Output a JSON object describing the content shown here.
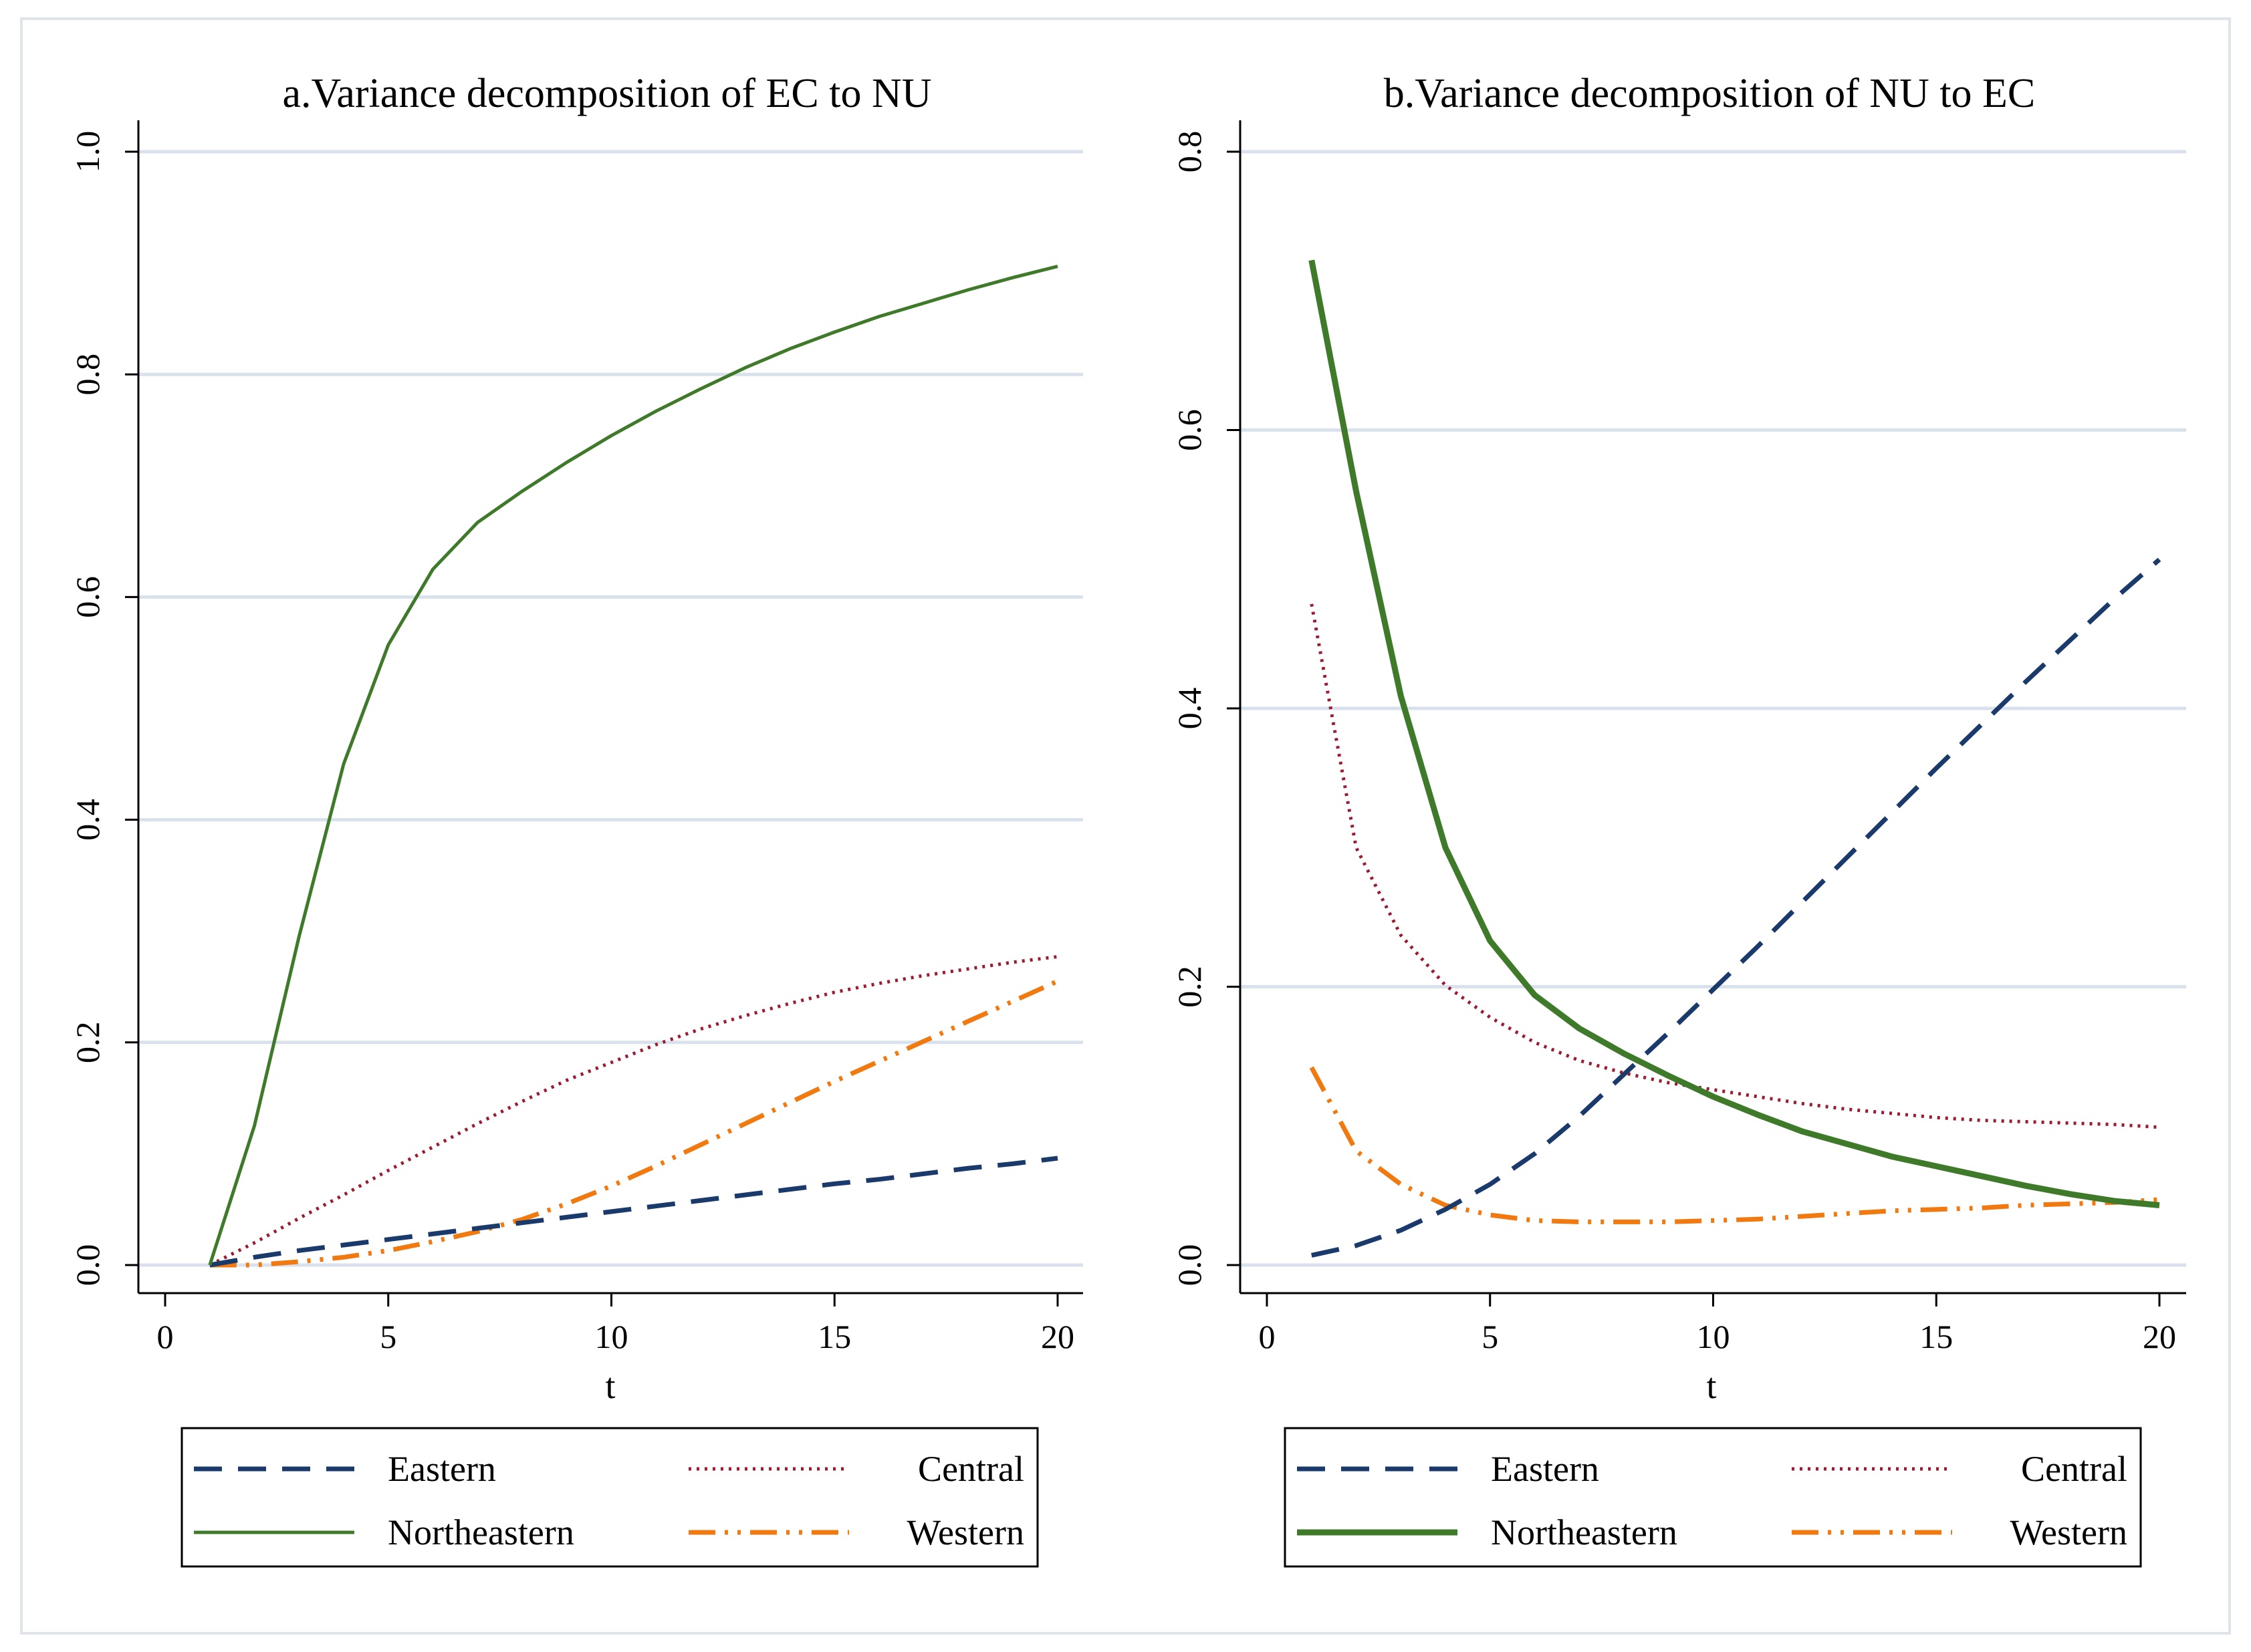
{
  "colors": {
    "Eastern": "#1a3a6b",
    "Northeastern": "#3f7a2a",
    "Central": "#9b1b30",
    "Western": "#f07a10",
    "grid": "#d9e2ec",
    "frame": "#dfe4ea"
  },
  "chart_data": [
    {
      "type": "line",
      "title": "a.Variance decomposition of EC to NU",
      "xlabel": "t",
      "ylabel": "",
      "xlim": [
        0,
        20
      ],
      "ylim": [
        0,
        1.0
      ],
      "xticks": [
        "0",
        "5",
        "10",
        "15",
        "20"
      ],
      "xtick_values": [
        0,
        5,
        10,
        15,
        20
      ],
      "yticks": [
        "0.0",
        "0.2",
        "0.4",
        "0.6",
        "0.8",
        "1.0"
      ],
      "ytick_values": [
        0,
        0.2,
        0.4,
        0.6,
        0.8,
        1.0
      ],
      "grid": true,
      "legend": [
        "Eastern",
        "Central",
        "Northeastern",
        "Western"
      ],
      "legend_position": "bottom",
      "x": [
        1,
        2,
        3,
        4,
        5,
        6,
        7,
        8,
        9,
        10,
        11,
        12,
        13,
        14,
        15,
        16,
        17,
        18,
        19,
        20
      ],
      "series": [
        {
          "name": "Eastern",
          "style": "dash",
          "values": [
            0.0,
            0.007,
            0.013,
            0.018,
            0.023,
            0.028,
            0.033,
            0.038,
            0.043,
            0.048,
            0.053,
            0.058,
            0.063,
            0.068,
            0.073,
            0.077,
            0.082,
            0.087,
            0.091,
            0.096
          ]
        },
        {
          "name": "Central",
          "style": "dot",
          "values": [
            0.0,
            0.02,
            0.042,
            0.063,
            0.085,
            0.106,
            0.127,
            0.147,
            0.166,
            0.182,
            0.198,
            0.212,
            0.224,
            0.235,
            0.245,
            0.253,
            0.26,
            0.266,
            0.272,
            0.277
          ]
        },
        {
          "name": "Northeastern",
          "style": "solid",
          "values": [
            0.0,
            0.125,
            0.295,
            0.45,
            0.557,
            0.625,
            0.667,
            0.695,
            0.721,
            0.745,
            0.767,
            0.787,
            0.806,
            0.823,
            0.838,
            0.852,
            0.864,
            0.876,
            0.887,
            0.897
          ]
        },
        {
          "name": "Western",
          "style": "dashdotdot",
          "values": [
            0.0,
            0.0,
            0.003,
            0.007,
            0.013,
            0.021,
            0.03,
            0.041,
            0.055,
            0.071,
            0.089,
            0.108,
            0.127,
            0.146,
            0.165,
            0.183,
            0.201,
            0.219,
            0.237,
            0.255
          ]
        }
      ]
    },
    {
      "type": "line",
      "title": "b.Variance decomposition of NU to EC",
      "xlabel": "t",
      "ylabel": "",
      "xlim": [
        0,
        20
      ],
      "ylim": [
        0,
        0.8
      ],
      "xticks": [
        "0",
        "5",
        "10",
        "15",
        "20"
      ],
      "xtick_values": [
        0,
        5,
        10,
        15,
        20
      ],
      "yticks": [
        "0.0",
        "0.2",
        "0.4",
        "0.6",
        "0.8"
      ],
      "ytick_values": [
        0,
        0.2,
        0.4,
        0.6,
        0.8
      ],
      "grid": true,
      "legend": [
        "Eastern",
        "Central",
        "Northeastern",
        "Western"
      ],
      "legend_position": "bottom",
      "x": [
        1,
        2,
        3,
        4,
        5,
        6,
        7,
        8,
        9,
        10,
        11,
        12,
        13,
        14,
        15,
        16,
        17,
        18,
        19,
        20
      ],
      "series": [
        {
          "name": "Eastern",
          "style": "dash",
          "values": [
            0.007,
            0.014,
            0.025,
            0.04,
            0.058,
            0.08,
            0.107,
            0.137,
            0.167,
            0.198,
            0.229,
            0.261,
            0.293,
            0.325,
            0.357,
            0.388,
            0.419,
            0.449,
            0.479,
            0.507
          ]
        },
        {
          "name": "Central",
          "style": "dot",
          "values": [
            0.475,
            0.3,
            0.237,
            0.201,
            0.178,
            0.16,
            0.147,
            0.138,
            0.131,
            0.126,
            0.121,
            0.116,
            0.112,
            0.109,
            0.106,
            0.104,
            0.103,
            0.102,
            0.101,
            0.099
          ]
        },
        {
          "name": "Northeastern",
          "style": "solid",
          "values": [
            0.722,
            0.556,
            0.409,
            0.3,
            0.233,
            0.194,
            0.17,
            0.152,
            0.136,
            0.121,
            0.108,
            0.096,
            0.087,
            0.078,
            0.071,
            0.064,
            0.057,
            0.051,
            0.046,
            0.043
          ]
        },
        {
          "name": "Western",
          "style": "dashdotdot",
          "values": [
            0.142,
            0.082,
            0.058,
            0.043,
            0.036,
            0.032,
            0.031,
            0.031,
            0.031,
            0.032,
            0.033,
            0.035,
            0.037,
            0.039,
            0.04,
            0.041,
            0.043,
            0.044,
            0.045,
            0.047
          ]
        }
      ]
    }
  ]
}
